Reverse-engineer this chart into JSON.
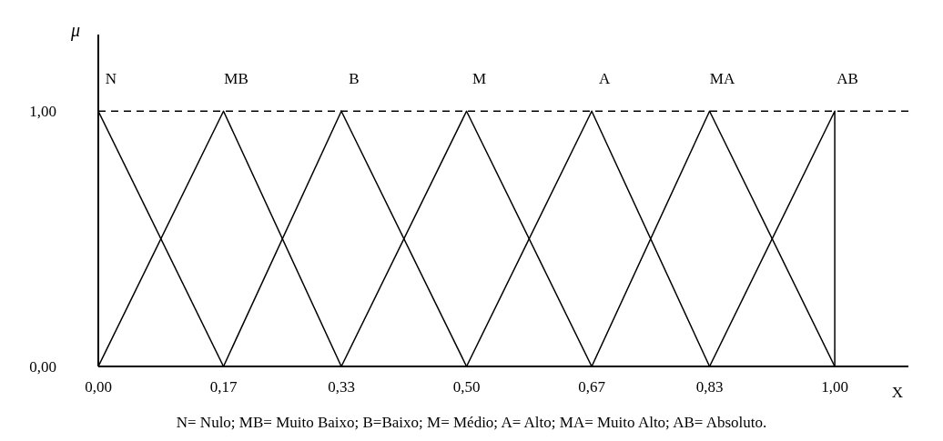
{
  "chart_data": {
    "type": "line",
    "xlabel": "X",
    "ylabel": "μ",
    "xlim": [
      0,
      1.1
    ],
    "ylim": [
      0,
      1.3
    ],
    "xticks": [
      {
        "value": 0,
        "label": "0,00"
      },
      {
        "value": 0.17,
        "label": "0,17"
      },
      {
        "value": 0.33,
        "label": "0,33"
      },
      {
        "value": 0.5,
        "label": "0,50"
      },
      {
        "value": 0.67,
        "label": "0,67"
      },
      {
        "value": 0.83,
        "label": "0,83"
      },
      {
        "value": 1,
        "label": "1,00"
      }
    ],
    "yticks": [
      {
        "value": 0,
        "label": "0,00"
      },
      {
        "value": 1,
        "label": "1,00"
      }
    ],
    "series": [
      {
        "name": "N",
        "color": "#000000",
        "x": [
          0,
          0.17
        ],
        "values": [
          1,
          0
        ]
      },
      {
        "name": "MB",
        "color": "#000000",
        "x": [
          0,
          0.17,
          0.33
        ],
        "values": [
          0,
          1,
          0
        ]
      },
      {
        "name": "B",
        "color": "#000000",
        "x": [
          0.17,
          0.33,
          0.5
        ],
        "values": [
          0,
          1,
          0
        ]
      },
      {
        "name": "M",
        "color": "#000000",
        "x": [
          0.33,
          0.5,
          0.67
        ],
        "values": [
          0,
          1,
          0
        ]
      },
      {
        "name": "A",
        "color": "#000000",
        "x": [
          0.5,
          0.67,
          0.83
        ],
        "values": [
          0,
          1,
          0
        ]
      },
      {
        "name": "MA",
        "color": "#000000",
        "x": [
          0.67,
          0.83,
          1
        ],
        "values": [
          0,
          1,
          0
        ]
      },
      {
        "name": "AB",
        "color": "#000000",
        "x": [
          0.83,
          1,
          1
        ],
        "values": [
          0,
          1,
          0
        ]
      }
    ],
    "ref_lines": [
      {
        "axis": "y",
        "value": 1,
        "label": null,
        "color": "#000000",
        "line_style": "dashed"
      }
    ],
    "grid": false,
    "legend": false,
    "marker": "none",
    "line_style": "solid",
    "annotations": [
      "N= Nulo; MB= Muito Baixo; B=Baixo; M= Médio; A= Alto; MA= Muito Alto; AB= Absoluto."
    ]
  }
}
